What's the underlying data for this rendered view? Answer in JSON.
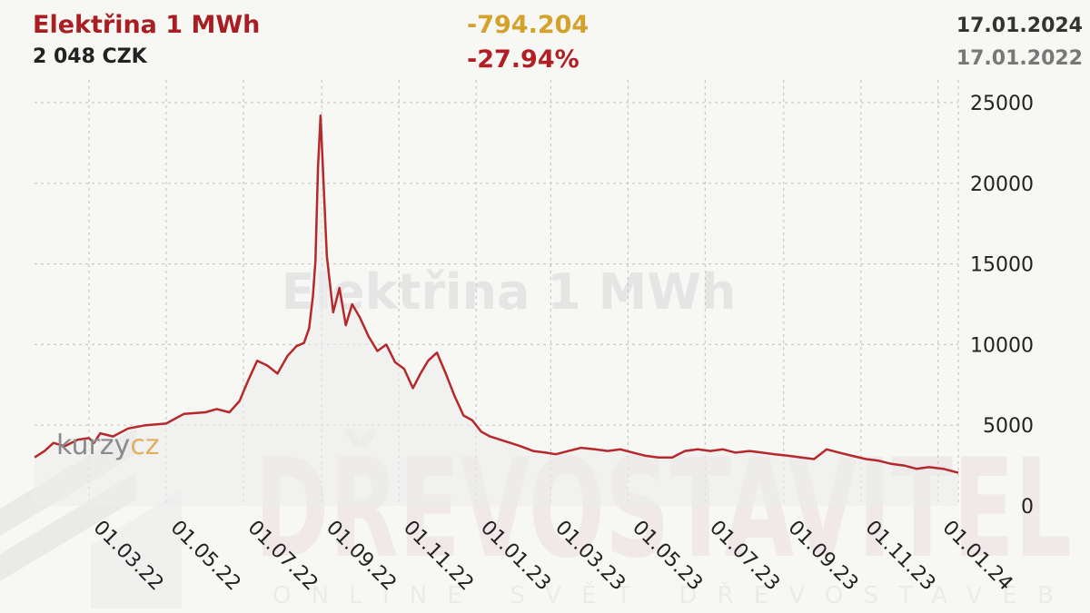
{
  "header": {
    "title": "Elektřina 1 MWh",
    "price": "2 048 CZK",
    "change_abs": "-794.204",
    "change_pct": "-27.94%",
    "date_end": "17.01.2024",
    "date_start": "17.01.2022"
  },
  "colors": {
    "title": "#a81e22",
    "change_abs": "#d4a22b",
    "change_pct": "#b31e24",
    "line": "#b5282b",
    "area": "#ececec",
    "grid": "#c8c8c8"
  },
  "watermarks": {
    "chart_title": "Elektřina 1 MWh",
    "brand": "kurzy",
    "brand_accent": "cz",
    "publisher": "DŘEVOSTAVITEL",
    "publisher_tagline": "ONLINE SVĚT DŘEVOSTAVEB"
  },
  "chart_data": {
    "type": "line",
    "title": "",
    "xlabel": "",
    "ylabel": "",
    "ylim": [
      0,
      25000
    ],
    "yticks": [
      0,
      5000,
      10000,
      15000,
      20000,
      25000
    ],
    "ytick_labels": [
      "0",
      "5000",
      "10000",
      "15000",
      "20000",
      "25000"
    ],
    "xlim": [
      "2022-01-17",
      "2024-01-17"
    ],
    "xticks": [
      "2022-03-01",
      "2022-05-01",
      "2022-07-01",
      "2022-09-01",
      "2022-11-01",
      "2023-01-01",
      "2023-03-01",
      "2023-05-01",
      "2023-07-01",
      "2023-09-01",
      "2023-11-01",
      "2024-01-01"
    ],
    "xtick_labels": [
      "01.03.22",
      "01.05.22",
      "01.07.22",
      "01.09.22",
      "01.11.22",
      "01.01.23",
      "01.03.23",
      "01.05.23",
      "01.07.23",
      "01.09.23",
      "01.11.23",
      "01.01.24"
    ],
    "grid": true,
    "series": [
      {
        "x": [
          "2022-01-17",
          "2022-01-25",
          "2022-02-01",
          "2022-02-10",
          "2022-02-20",
          "2022-03-01",
          "2022-03-05",
          "2022-03-10",
          "2022-03-20",
          "2022-04-01",
          "2022-04-15",
          "2022-05-01",
          "2022-05-15",
          "2022-06-01",
          "2022-06-10",
          "2022-06-20",
          "2022-06-28",
          "2022-07-05",
          "2022-07-12",
          "2022-07-20",
          "2022-07-28",
          "2022-08-05",
          "2022-08-12",
          "2022-08-18",
          "2022-08-22",
          "2022-08-25",
          "2022-08-27",
          "2022-08-29",
          "2022-08-31",
          "2022-09-05",
          "2022-09-10",
          "2022-09-15",
          "2022-09-20",
          "2022-09-25",
          "2022-10-01",
          "2022-10-08",
          "2022-10-15",
          "2022-10-22",
          "2022-10-29",
          "2022-11-05",
          "2022-11-12",
          "2022-11-18",
          "2022-11-24",
          "2022-12-01",
          "2022-12-08",
          "2022-12-15",
          "2022-12-22",
          "2022-12-29",
          "2023-01-05",
          "2023-01-12",
          "2023-01-20",
          "2023-01-28",
          "2023-02-05",
          "2023-02-15",
          "2023-02-25",
          "2023-03-05",
          "2023-03-15",
          "2023-03-25",
          "2023-04-05",
          "2023-04-15",
          "2023-04-25",
          "2023-05-05",
          "2023-05-15",
          "2023-05-25",
          "2023-06-05",
          "2023-06-15",
          "2023-06-25",
          "2023-07-05",
          "2023-07-15",
          "2023-07-25",
          "2023-08-05",
          "2023-08-15",
          "2023-08-25",
          "2023-09-05",
          "2023-09-15",
          "2023-09-25",
          "2023-10-05",
          "2023-10-15",
          "2023-10-25",
          "2023-11-05",
          "2023-11-15",
          "2023-11-25",
          "2023-12-05",
          "2023-12-15",
          "2023-12-25",
          "2024-01-05",
          "2024-01-17"
        ],
        "values": [
          3000,
          3400,
          3900,
          3700,
          4100,
          4200,
          3900,
          4500,
          4300,
          4800,
          5000,
          5100,
          5700,
          5800,
          6000,
          5800,
          6500,
          7800,
          9000,
          8700,
          8200,
          9300,
          9900,
          10100,
          11000,
          13000,
          15200,
          21000,
          24200,
          15500,
          12000,
          13500,
          11200,
          12500,
          11700,
          10500,
          9600,
          10000,
          8900,
          8500,
          7300,
          8200,
          9000,
          9500,
          8200,
          6800,
          5600,
          5300,
          4600,
          4300,
          4100,
          3900,
          3700,
          3400,
          3300,
          3200,
          3400,
          3600,
          3500,
          3400,
          3500,
          3300,
          3100,
          3000,
          3000,
          3400,
          3500,
          3400,
          3500,
          3300,
          3400,
          3300,
          3200,
          3100,
          3000,
          2900,
          3500,
          3300,
          3100,
          2900,
          2800,
          2600,
          2500,
          2300,
          2400,
          2300,
          2048
        ]
      }
    ]
  }
}
